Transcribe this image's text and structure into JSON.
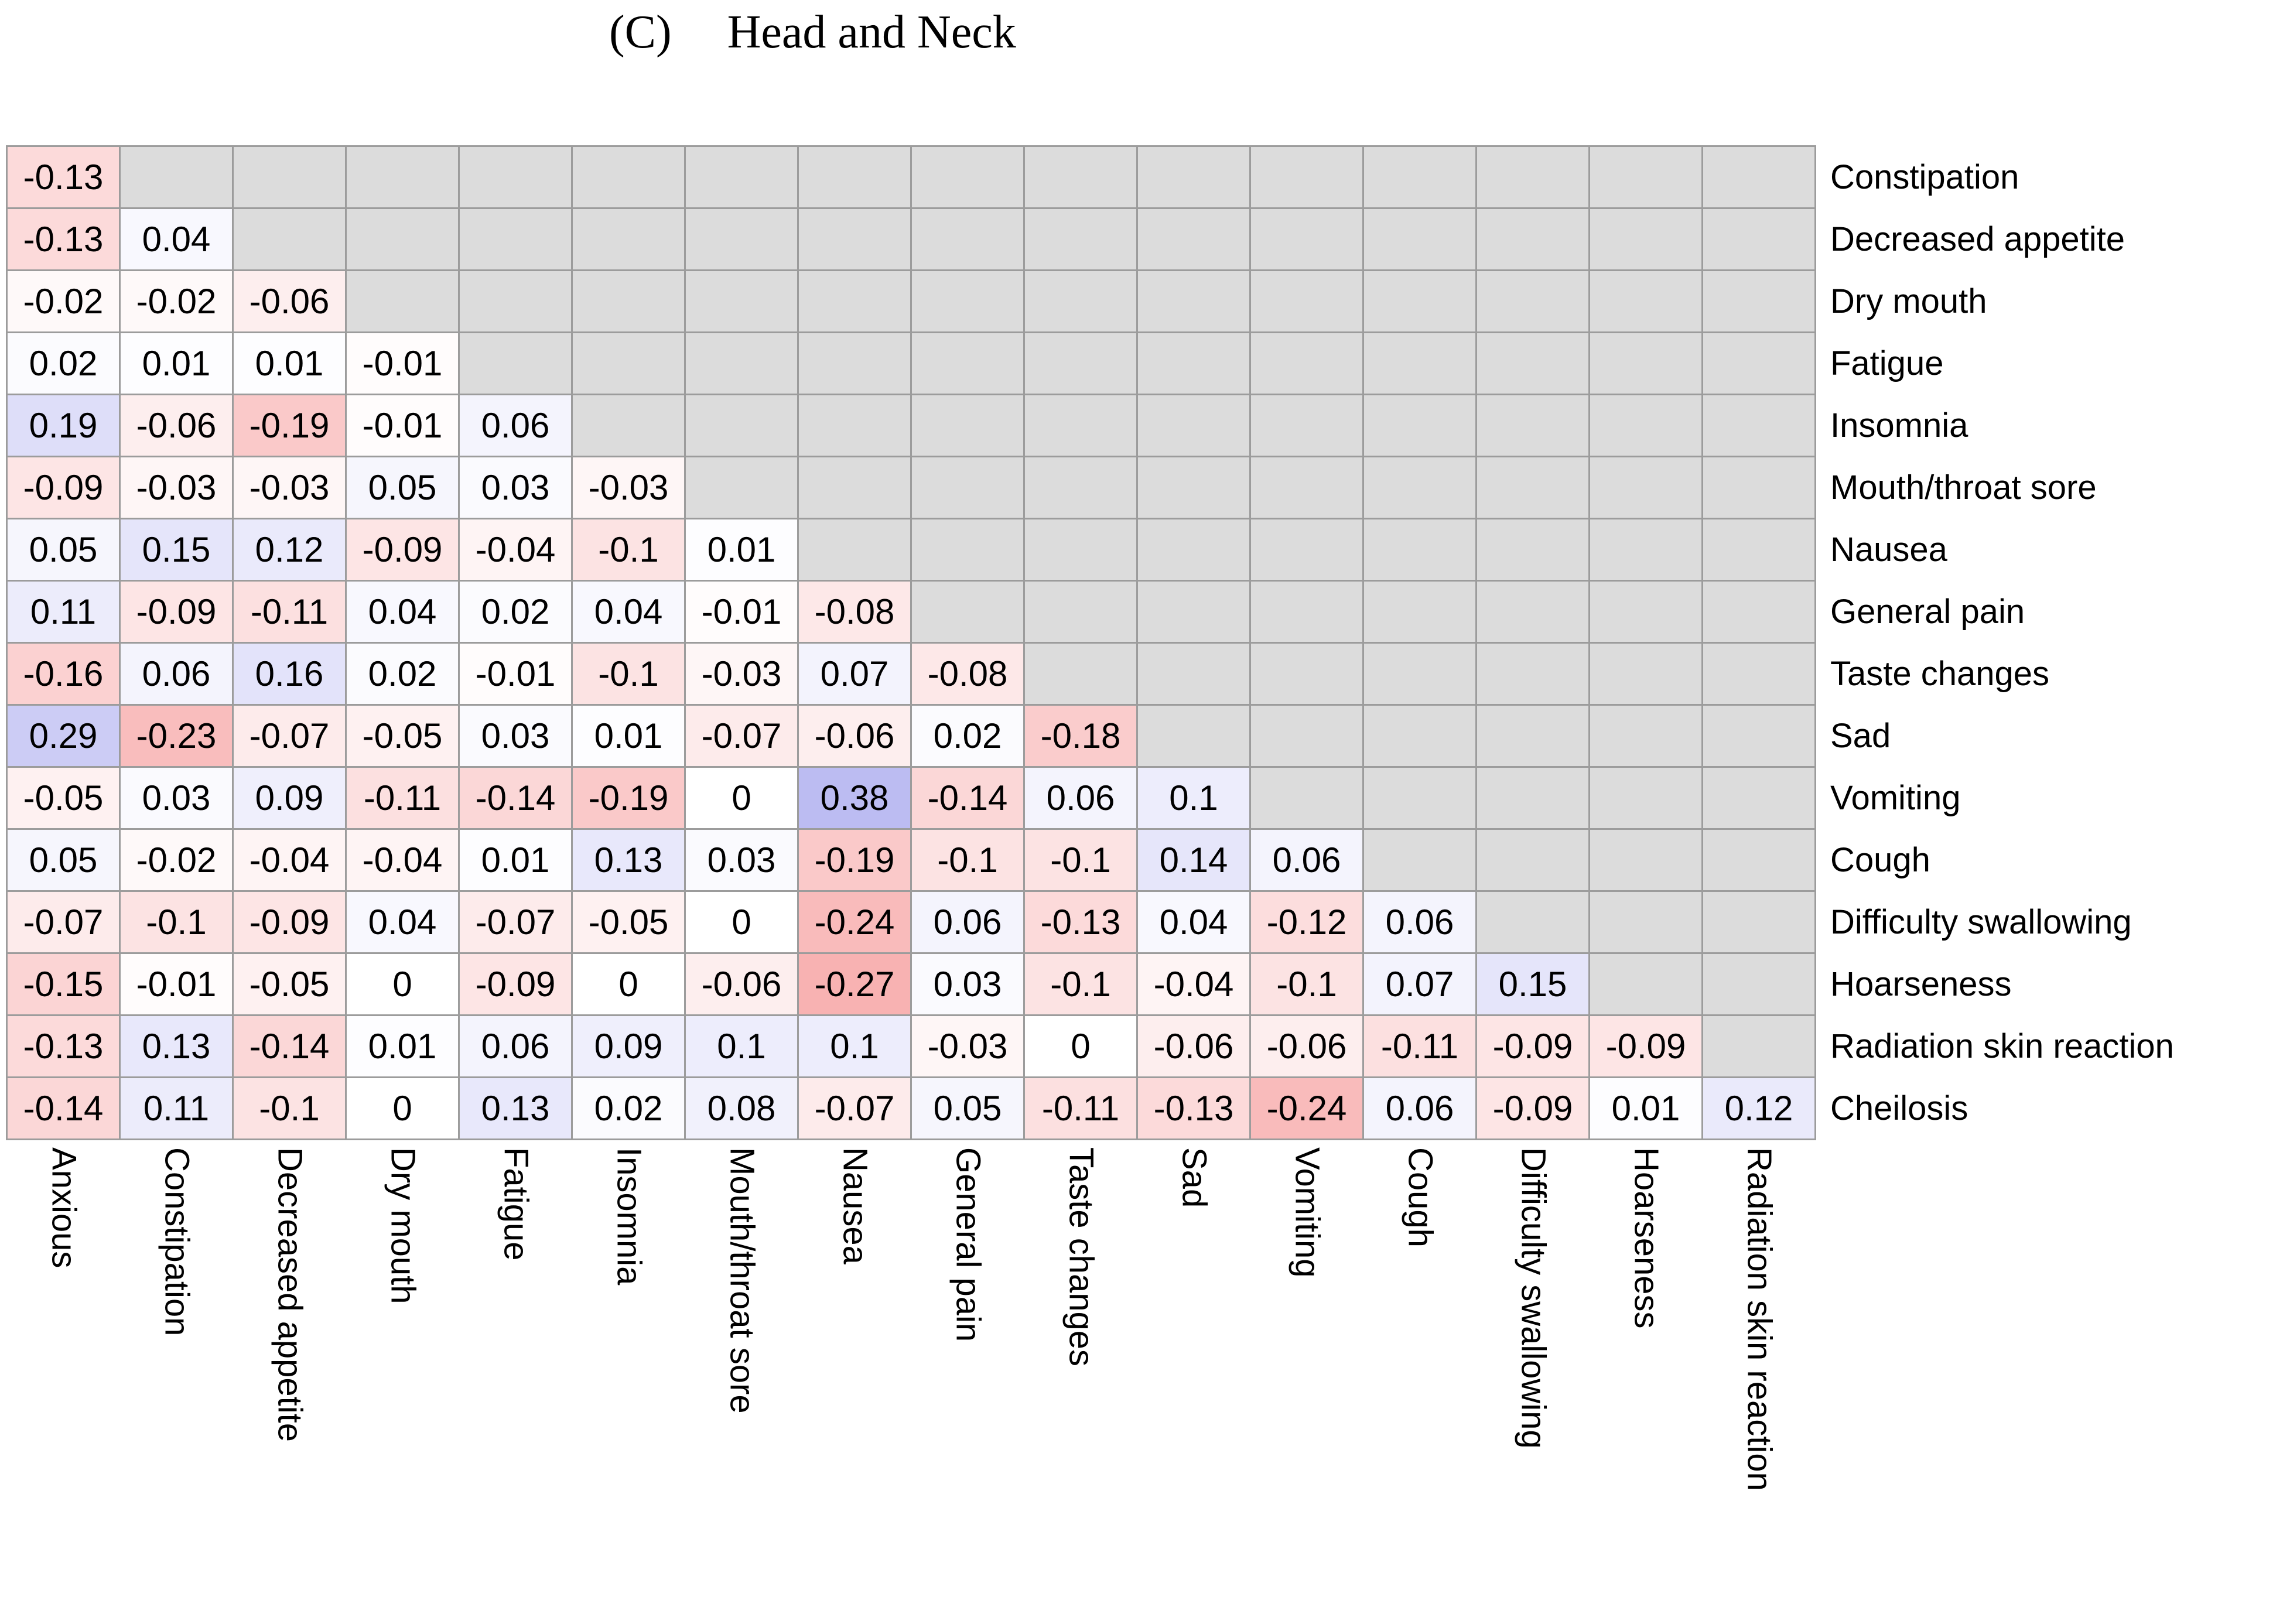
{
  "title": {
    "label": "(C)",
    "text": "Head and Neck"
  },
  "chart_data": {
    "type": "heatmap",
    "subtype": "correlation-matrix-lower-triangle",
    "title": "(C) Head and Neck",
    "x_labels": [
      "Anxious",
      "Constipation",
      "Decreased appetite",
      "Dry mouth",
      "Fatigue",
      "Insomnia",
      "Mouth/throat sore",
      "Nausea",
      "General pain",
      "Taste changes",
      "Sad",
      "Vomiting",
      "Cough",
      "Difficulty swallowing",
      "Hoarseness",
      "Radiation skin reaction"
    ],
    "y_labels": [
      "Constipation",
      "Decreased appetite",
      "Dry mouth",
      "Fatigue",
      "Insomnia",
      "Mouth/throat sore",
      "Nausea",
      "General pain",
      "Taste changes",
      "Sad",
      "Vomiting",
      "Cough",
      "Difficulty swallowing",
      "Hoarseness",
      "Radiation skin reaction",
      "Cheilosis"
    ],
    "values": [
      [
        -0.13
      ],
      [
        -0.13,
        0.04
      ],
      [
        -0.02,
        -0.02,
        -0.06
      ],
      [
        0.02,
        0.01,
        0.01,
        -0.01
      ],
      [
        0.19,
        -0.06,
        -0.19,
        -0.01,
        0.06
      ],
      [
        -0.09,
        -0.03,
        -0.03,
        0.05,
        0.03,
        -0.03
      ],
      [
        0.05,
        0.15,
        0.12,
        -0.09,
        -0.04,
        -0.1,
        0.01
      ],
      [
        0.11,
        -0.09,
        -0.11,
        0.04,
        0.02,
        0.04,
        -0.01,
        -0.08
      ],
      [
        -0.16,
        0.06,
        0.16,
        0.02,
        -0.01,
        -0.1,
        -0.03,
        0.07,
        -0.08
      ],
      [
        0.29,
        -0.23,
        -0.07,
        -0.05,
        0.03,
        0.01,
        -0.07,
        -0.06,
        0.02,
        -0.18
      ],
      [
        -0.05,
        0.03,
        0.09,
        -0.11,
        -0.14,
        -0.19,
        0,
        0.38,
        -0.14,
        0.06,
        0.1
      ],
      [
        0.05,
        -0.02,
        -0.04,
        -0.04,
        0.01,
        0.13,
        0.03,
        -0.19,
        -0.1,
        -0.1,
        0.14,
        0.06
      ],
      [
        -0.07,
        -0.1,
        -0.09,
        0.04,
        -0.07,
        -0.05,
        0,
        -0.24,
        0.06,
        -0.13,
        0.04,
        -0.12,
        0.06
      ],
      [
        -0.15,
        -0.01,
        -0.05,
        0,
        -0.09,
        0,
        -0.06,
        -0.27,
        0.03,
        -0.1,
        -0.04,
        -0.1,
        0.07,
        0.15
      ],
      [
        -0.13,
        0.13,
        -0.14,
        0.01,
        0.06,
        0.09,
        0.1,
        0.1,
        -0.03,
        0,
        -0.06,
        -0.06,
        -0.11,
        -0.09,
        -0.09
      ],
      [
        -0.14,
        0.11,
        -0.1,
        0,
        0.13,
        0.02,
        0.08,
        -0.07,
        0.05,
        -0.11,
        -0.13,
        -0.24,
        0.06,
        -0.09,
        0.01,
        0.12
      ]
    ],
    "colors": {
      "zero": "#ffffff",
      "positive_full_rgb": [
        79,
        79,
        221
      ],
      "negative_full_rgb": [
        229,
        -30,
        -30
      ],
      "empty_cell": "#dcdcdc",
      "grid_line": "#9c9c9c",
      "value_text": "#000000"
    },
    "layout": {
      "legend": "none",
      "grid": true,
      "value_range": [
        -1,
        1
      ],
      "x_label_rotation": "vertical-top-to-bottom",
      "y_label_side": "right"
    }
  }
}
